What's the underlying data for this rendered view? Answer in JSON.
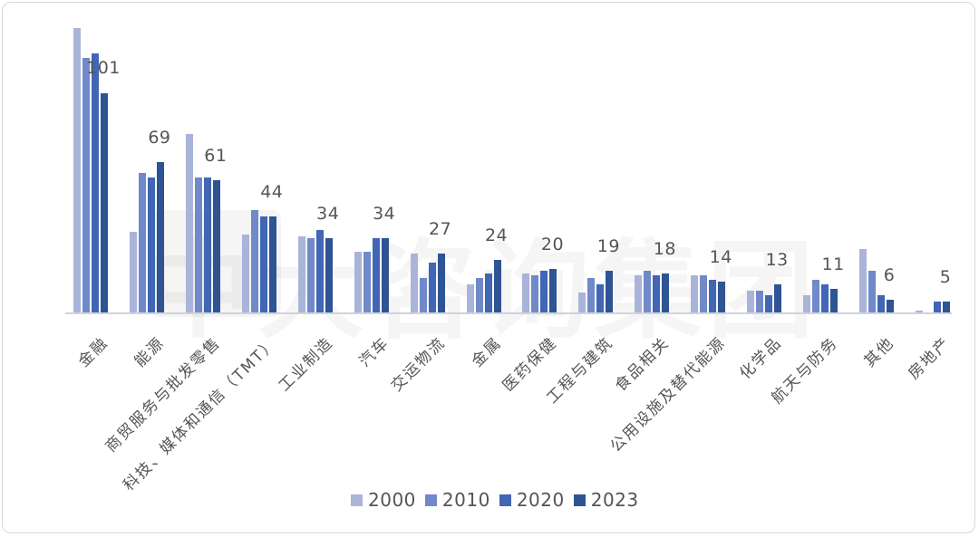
{
  "chart_data": {
    "type": "bar",
    "title": "",
    "xlabel": "",
    "ylabel": "",
    "ylim": [
      0,
      135
    ],
    "grid": false,
    "legend_position": "bottom",
    "categories": [
      "金融",
      "能源",
      "商贸服务与批发零售",
      "科技、媒体和通信（TMT）",
      "工业制造",
      "汽车",
      "交运物流",
      "金属",
      "医药保健",
      "工程与建筑",
      "食品相关",
      "公用设施及替代能源",
      "化学品",
      "航天与防务",
      "其他",
      "房地产"
    ],
    "series": [
      {
        "name": "2000",
        "color": "#aab4d8",
        "values": [
          131,
          37,
          82,
          36,
          35,
          28,
          27,
          13,
          18,
          9,
          17,
          17,
          10,
          8,
          29,
          1
        ]
      },
      {
        "name": "2010",
        "color": "#7089c9",
        "values": [
          117,
          64,
          62,
          47,
          34,
          28,
          16,
          16,
          17,
          16,
          19,
          17,
          10,
          15,
          19,
          0
        ]
      },
      {
        "name": "2020",
        "color": "#4066b4",
        "values": [
          119,
          62,
          62,
          44,
          38,
          34,
          23,
          18,
          19,
          13,
          17,
          15,
          8,
          13,
          8,
          5
        ]
      },
      {
        "name": "2023",
        "color": "#2e5494",
        "values": [
          101,
          69,
          61,
          44,
          34,
          34,
          27,
          24,
          20,
          19,
          18,
          14,
          13,
          11,
          6,
          5
        ]
      }
    ],
    "data_labels": [
      "101",
      "69",
      "61",
      "44",
      "34",
      "34",
      "27",
      "24",
      "20",
      "19",
      "18",
      "14",
      "13",
      "11",
      "6",
      "5"
    ],
    "data_label_series": "2023"
  },
  "watermark": {
    "text": "中大咨询集团"
  },
  "legend": [
    {
      "label": "2000",
      "color": "#aab4d8"
    },
    {
      "label": "2010",
      "color": "#7089c9"
    },
    {
      "label": "2020",
      "color": "#4066b4"
    },
    {
      "label": "2023",
      "color": "#2e5494"
    }
  ]
}
